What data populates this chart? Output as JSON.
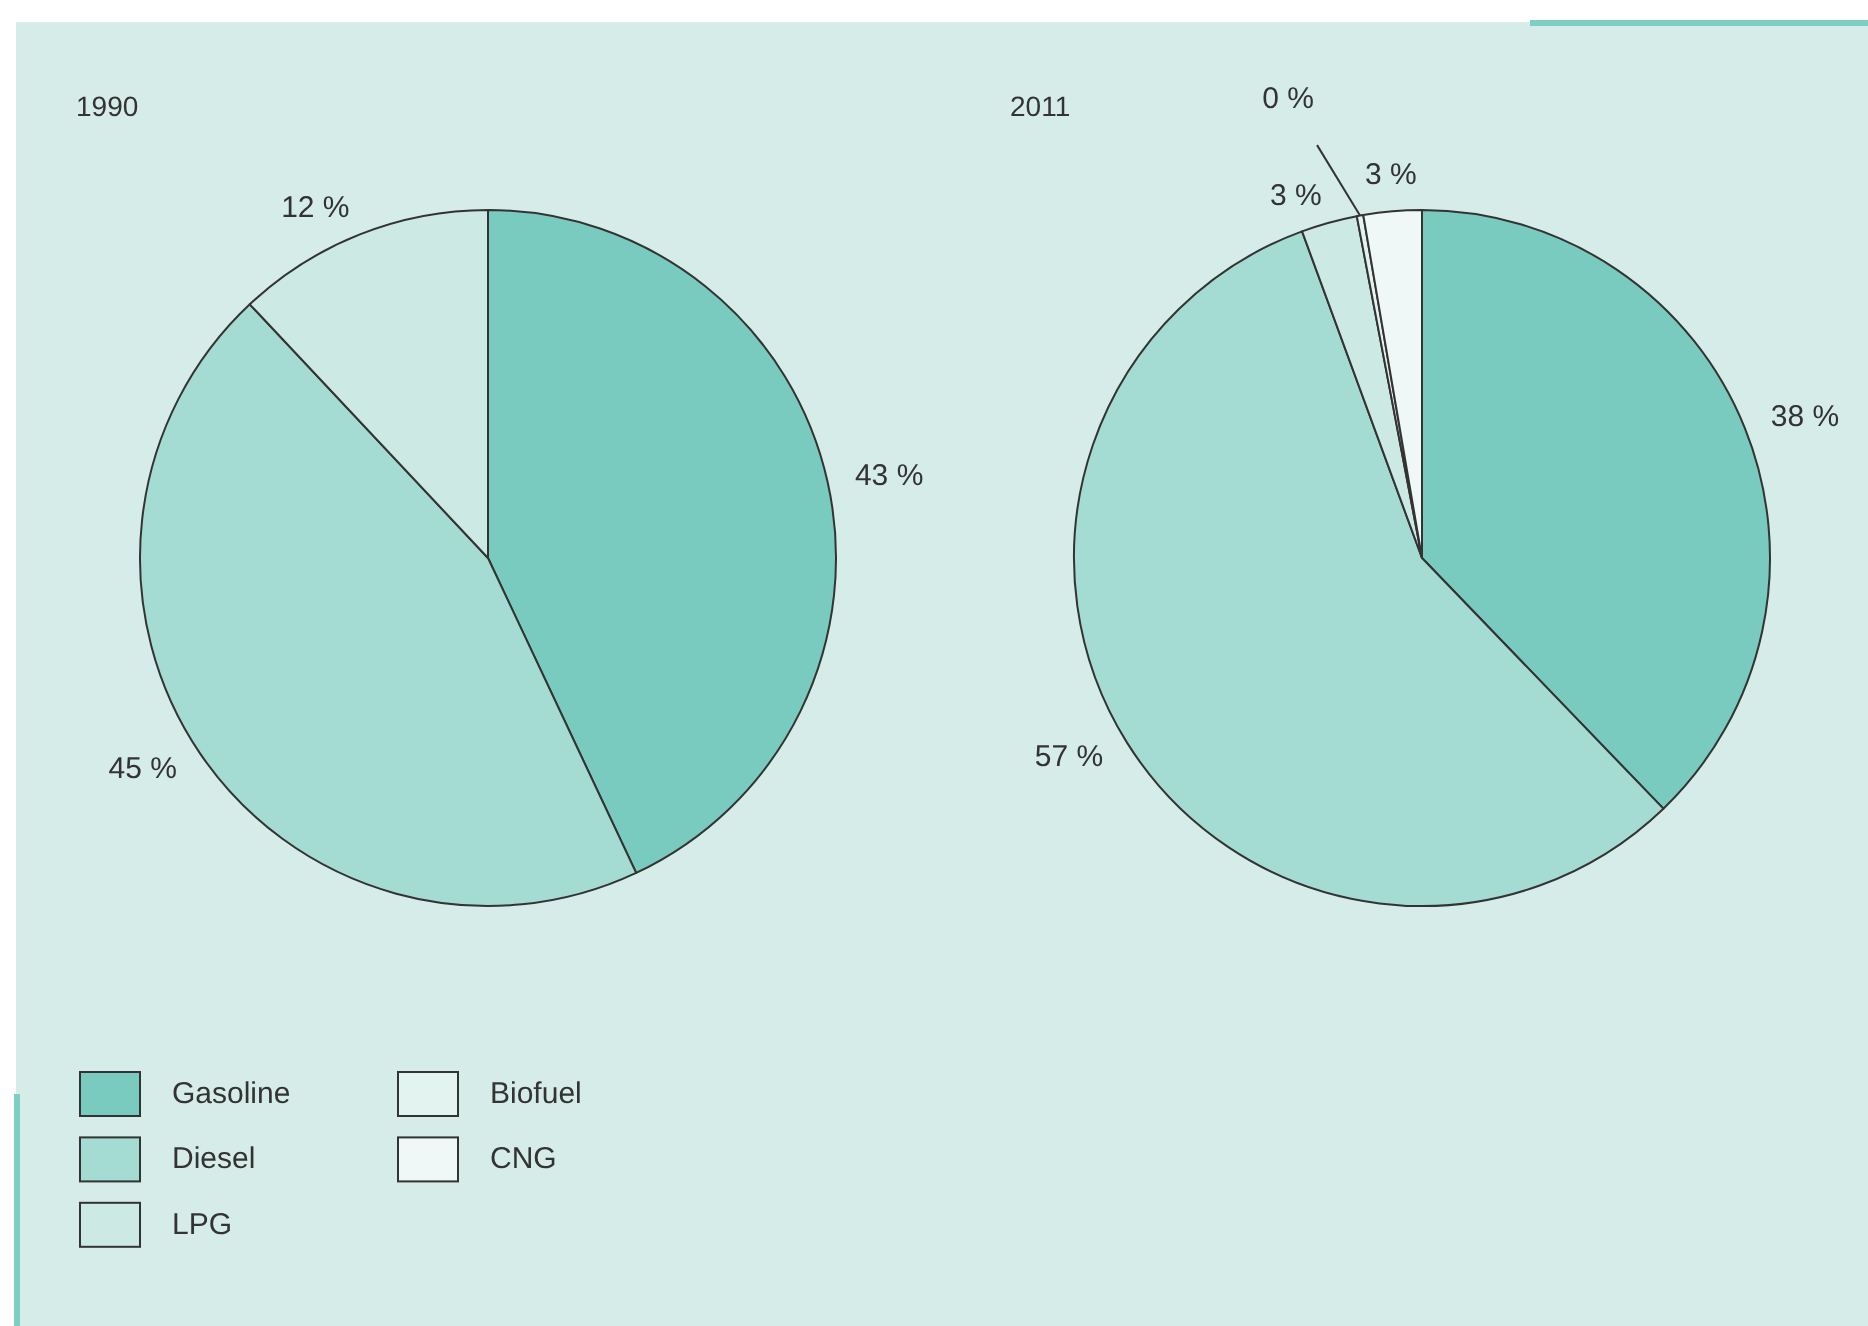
{
  "chart_data": {
    "type": "pie",
    "categories": [
      "Gasoline",
      "Diesel",
      "LPG",
      "Biofuel",
      "CNG"
    ],
    "colors": [
      "#78cbbe",
      "#a4dcd3",
      "#cde9e4",
      "#e3f3ef",
      "#eff8f6"
    ],
    "legend": "bottom left",
    "series": [
      {
        "name": "1990",
        "values": [
          43,
          45,
          12,
          null,
          null
        ],
        "value_labels": [
          "43 %",
          "45 %",
          "12 %",
          null,
          null
        ]
      },
      {
        "name": "2011",
        "values": [
          37.8,
          56.6,
          2.6,
          0.3,
          2.7
        ],
        "value_labels": [
          "38 %",
          "57 %",
          "3 %",
          "0 %",
          "3 %"
        ]
      }
    ]
  }
}
